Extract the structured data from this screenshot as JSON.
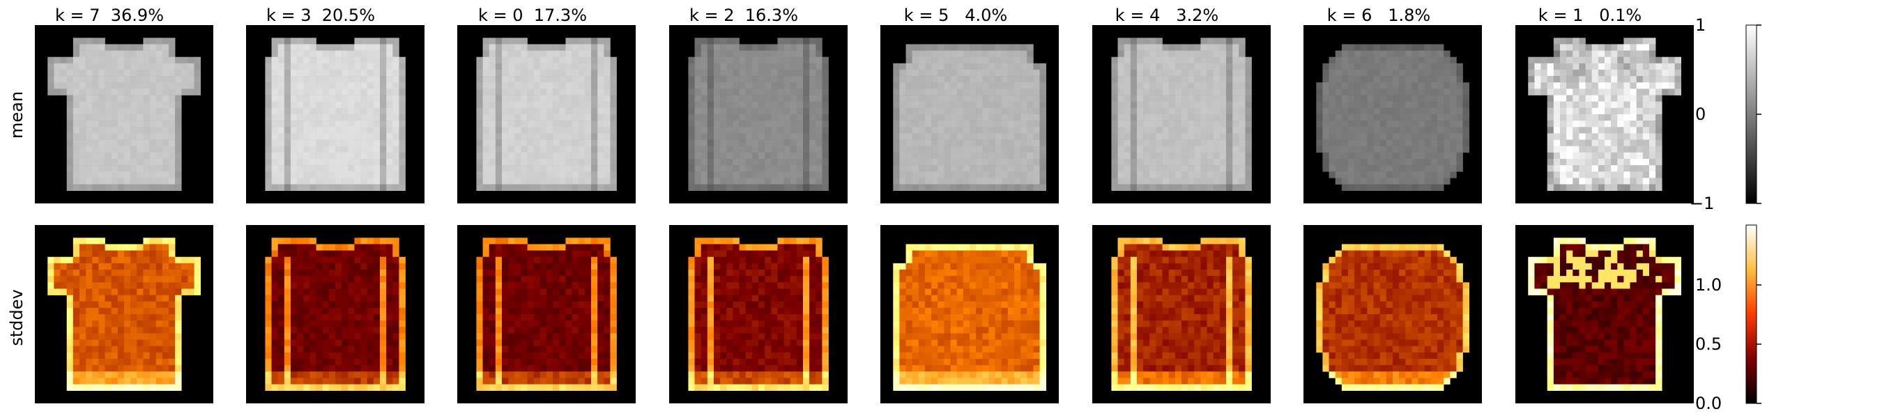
{
  "chart_data": {
    "type": "heatmap",
    "rows": [
      "mean",
      "stddev"
    ],
    "panels": [
      {
        "k": 7,
        "title": "k = 7  36.9%",
        "shape": "tshirt",
        "mean_brightness": 0.78,
        "std_style": "tshirt"
      },
      {
        "k": 3,
        "title": "k = 3  20.5%",
        "shape": "longsleeve",
        "mean_brightness": 0.86,
        "std_style": "longsleeve"
      },
      {
        "k": 0,
        "title": "k = 0  17.3%",
        "shape": "longsleeve",
        "mean_brightness": 0.82,
        "std_style": "longsleeve"
      },
      {
        "k": 2,
        "title": "k = 2  16.3%",
        "shape": "longsleeve",
        "mean_brightness": 0.55,
        "std_style": "longsleeve-dim"
      },
      {
        "k": 5,
        "title": "k = 5   4.0%",
        "shape": "wide",
        "mean_brightness": 0.72,
        "std_style": "wide"
      },
      {
        "k": 4,
        "title": "k = 4   3.2%",
        "shape": "longsleeve",
        "mean_brightness": 0.76,
        "std_style": "longsleeve-bright"
      },
      {
        "k": 6,
        "title": "k = 6   1.8%",
        "shape": "blob",
        "mean_brightness": 0.48,
        "std_style": "blob"
      },
      {
        "k": 1,
        "title": "k = 1   0.1%",
        "shape": "tshirt-noisy",
        "mean_brightness": 0.88,
        "std_style": "outline"
      }
    ],
    "colorbars": [
      {
        "row": "mean",
        "colormap": "gray",
        "range": [
          -1,
          1
        ],
        "ticks": [
          -1,
          0,
          1
        ],
        "tick_labels": [
          "−1",
          "0",
          "1"
        ]
      },
      {
        "row": "stddev",
        "colormap": "afmhot",
        "range": [
          0,
          1.4
        ],
        "ticks": [
          0.0,
          0.5,
          1.0
        ],
        "tick_labels": [
          "0.0",
          "0.5",
          "1.0"
        ]
      }
    ]
  }
}
